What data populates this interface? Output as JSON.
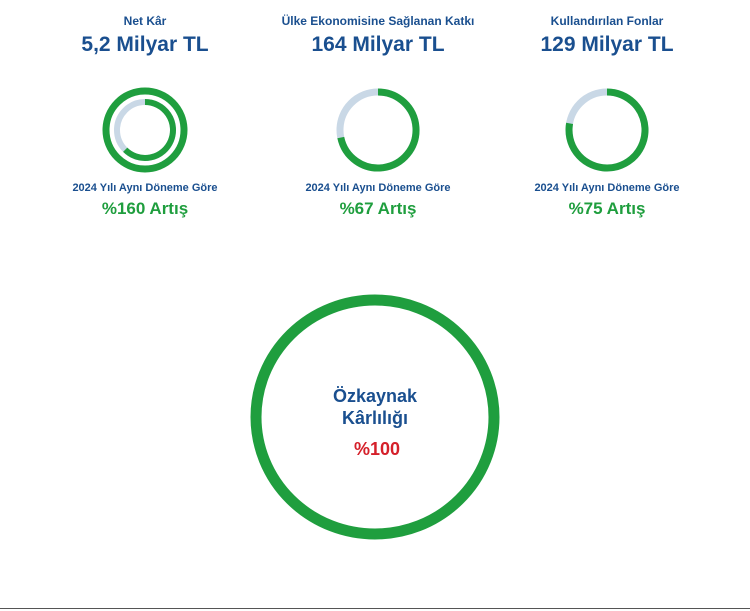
{
  "kpis": [
    {
      "title": "Net Kâr",
      "value": "5,2 Milyar TL",
      "compare_label": "2024 Yılı Aynı Döneme Göre",
      "change": "%160 Artış"
    },
    {
      "title": "Ülke Ekonomisine Sağlanan Katkı",
      "value": "164 Milyar TL",
      "compare_label": "2024 Yılı Aynı Döneme Göre",
      "change": "%67 Artış"
    },
    {
      "title": "Kullandırılan Fonlar",
      "value": "129 Milyar TL",
      "compare_label": "2024 Yılı Aynı Döneme Göre",
      "change": "%75 Artış"
    }
  ],
  "roe": {
    "label_line1": "Özkaynak",
    "label_line2": "Kârlılığı",
    "value": "%100"
  },
  "colors": {
    "accent_green": "#1f9e3e",
    "track_light_blue": "#c9d8e6",
    "title_blue": "#1a4f8f",
    "value_red": "#d5202a"
  }
}
